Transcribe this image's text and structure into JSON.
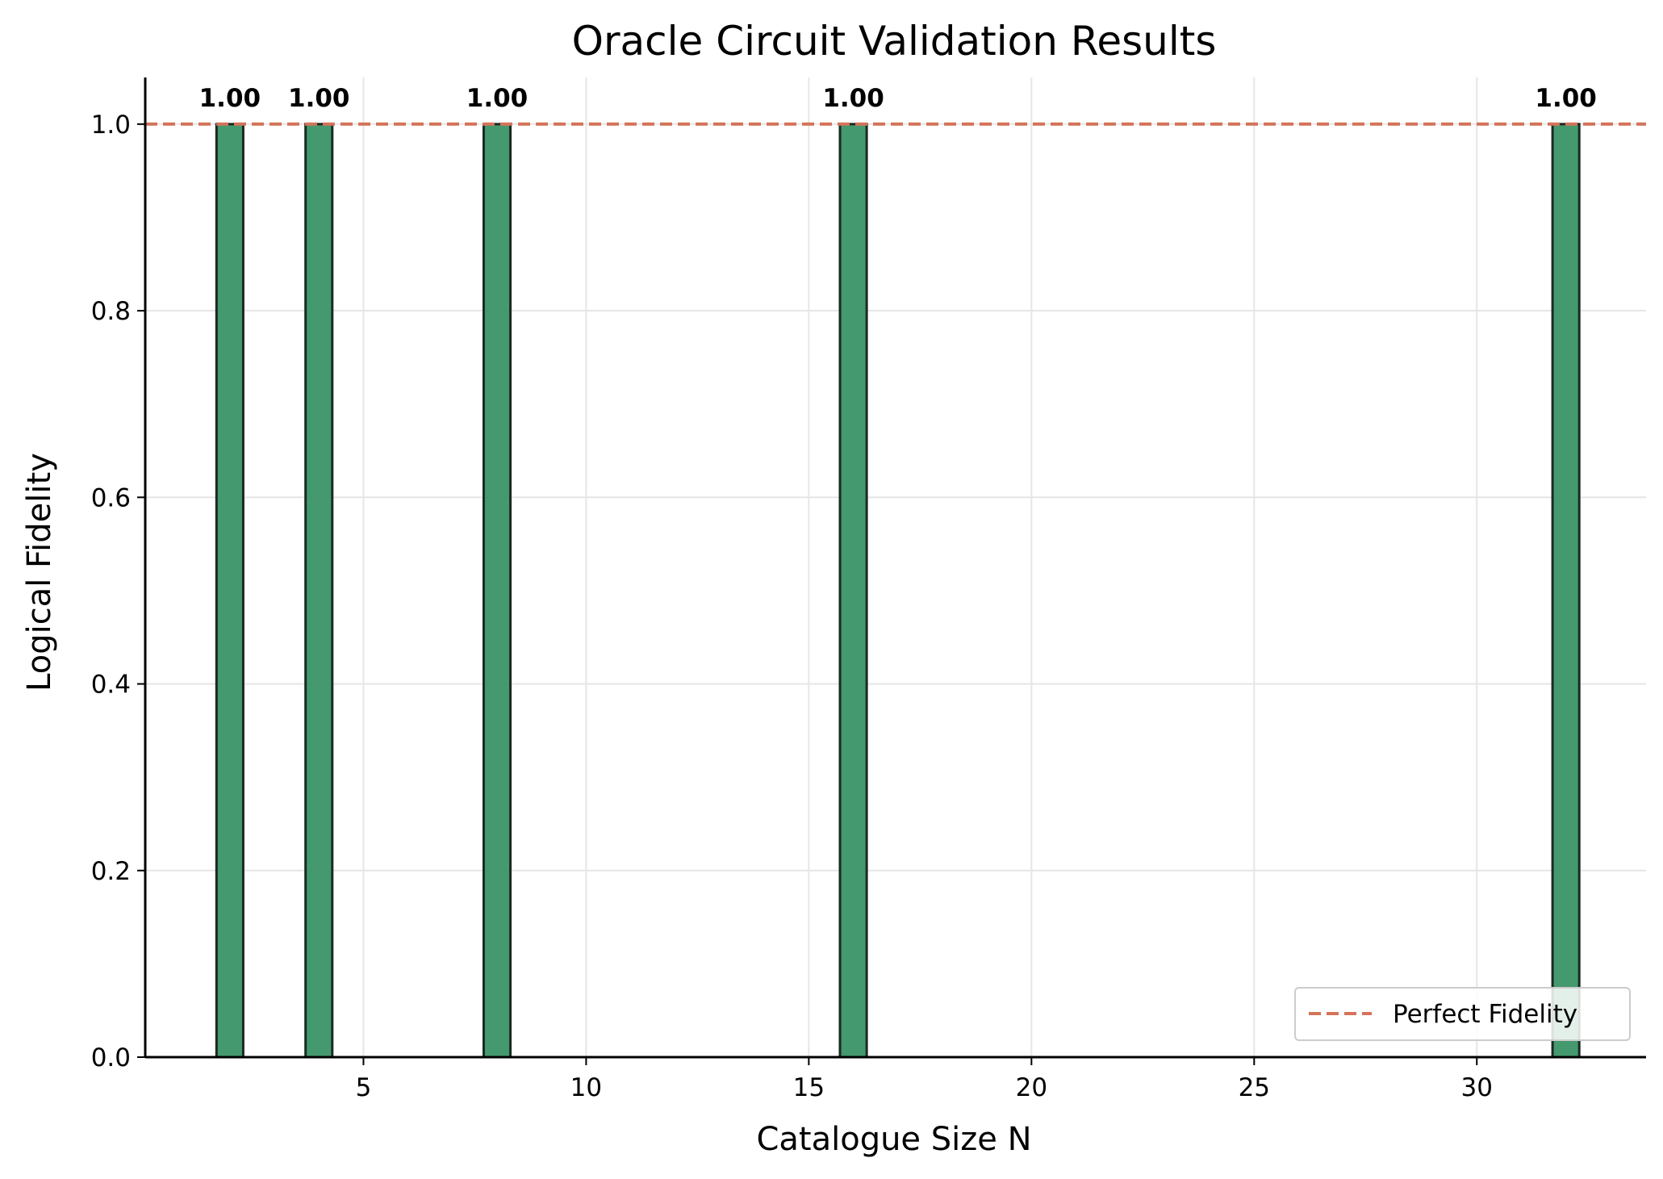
{
  "chart_data": {
    "type": "bar",
    "title": "Oracle Circuit Validation Results",
    "xlabel": "Catalogue Size N",
    "ylabel": "Logical Fidelity",
    "x": [
      2,
      4,
      8,
      16,
      32
    ],
    "values": [
      1.0,
      1.0,
      1.0,
      1.0,
      1.0
    ],
    "value_labels": [
      "1.00",
      "1.00",
      "1.00",
      "1.00",
      "1.00"
    ],
    "bar_width": 0.6,
    "xlim": [
      0.1,
      33.8
    ],
    "ylim": [
      0,
      1.05
    ],
    "xticks": [
      5,
      10,
      15,
      20,
      25,
      30
    ],
    "xtick_labels": [
      "5",
      "10",
      "15",
      "20",
      "25",
      "30"
    ],
    "yticks": [
      0.0,
      0.2,
      0.4,
      0.6,
      0.8,
      1.0
    ],
    "ytick_labels": [
      "0.0",
      "0.2",
      "0.4",
      "0.6",
      "0.8",
      "1.0"
    ],
    "reference_line": {
      "y": 1.0,
      "style": "dashed",
      "label": "Perfect Fidelity"
    },
    "grid": true,
    "legend": {
      "position": "lower-right",
      "entries": [
        "Perfect Fidelity"
      ]
    },
    "colors": {
      "bar_fill": "#3a9466",
      "bar_edge": "#1a2a22",
      "reference_line": "#d4735a",
      "grid": "#e6e6e6",
      "axis": "#000000"
    }
  }
}
